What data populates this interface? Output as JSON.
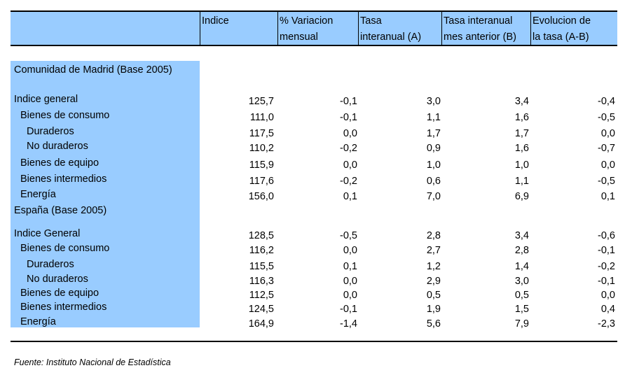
{
  "header": {
    "columns": [
      {
        "line1": "",
        "line2": ""
      },
      {
        "line1": "Indice",
        "line2": ""
      },
      {
        "line1": "% Variacion",
        "line2": "mensual"
      },
      {
        "line1": "Tasa",
        "line2": "interanual (A)"
      },
      {
        "line1": "Tasa interanual",
        "line2": "mes anterior (B)"
      },
      {
        "line1": "Evolucion de",
        "line2": "la tasa (A-B)"
      }
    ]
  },
  "sections": [
    {
      "title": "Comunidad de Madrid (Base 2005)",
      "rows": [
        {
          "label": "Indice general",
          "indent": 0,
          "values": [
            "125,7",
            "-0,1",
            "3,0",
            "3,4",
            "-0,4"
          ]
        },
        {
          "label": "Bienes de consumo",
          "indent": 1,
          "values": [
            "111,0",
            "-0,1",
            "1,1",
            "1,6",
            "-0,5"
          ]
        },
        {
          "label": "Duraderos",
          "indent": 2,
          "values": [
            "117,5",
            "0,0",
            "1,7",
            "1,7",
            "0,0"
          ]
        },
        {
          "label": "No duraderos",
          "indent": 2,
          "values": [
            "110,2",
            "-0,2",
            "0,9",
            "1,6",
            "-0,7"
          ]
        },
        {
          "label": "Bienes de equipo",
          "indent": 1,
          "values": [
            "115,9",
            "0,0",
            "1,0",
            "1,0",
            "0,0"
          ]
        },
        {
          "label": "Bienes intermedios",
          "indent": 1,
          "values": [
            "117,6",
            "-0,2",
            "0,6",
            "1,1",
            "-0,5"
          ]
        },
        {
          "label": "Energía",
          "indent": 1,
          "values": [
            "156,0",
            "0,1",
            "7,0",
            "6,9",
            "0,1"
          ]
        }
      ]
    },
    {
      "title": "España (Base 2005)",
      "rows": [
        {
          "label": "Indice General",
          "indent": 0,
          "values": [
            "128,5",
            "-0,5",
            "2,8",
            "3,4",
            "-0,6"
          ]
        },
        {
          "label": "Bienes de consumo",
          "indent": 1,
          "values": [
            "116,2",
            "0,0",
            "2,7",
            "2,8",
            "-0,1"
          ]
        },
        {
          "label": "Duraderos",
          "indent": 2,
          "values": [
            "115,5",
            "0,1",
            "1,2",
            "1,4",
            "-0,2"
          ]
        },
        {
          "label": "No duraderos",
          "indent": 2,
          "values": [
            "116,3",
            "0,0",
            "2,9",
            "3,0",
            "-0,1"
          ]
        },
        {
          "label": "Bienes de equipo",
          "indent": 1,
          "values": [
            "112,5",
            "0,0",
            "0,5",
            "0,5",
            "0,0"
          ]
        },
        {
          "label": "Bienes intermedios",
          "indent": 1,
          "values": [
            "124,5",
            "-0,1",
            "1,9",
            "1,5",
            "0,4"
          ]
        },
        {
          "label": "Energía",
          "indent": 1,
          "values": [
            "164,9",
            "-1,4",
            "5,6",
            "7,9",
            "-2,3"
          ]
        }
      ]
    }
  ],
  "footer": {
    "source": "Fuente: Instituto Nacional de Estadística"
  },
  "colors": {
    "header_fill": "#99ccff",
    "label_fill": "#99ccff"
  }
}
